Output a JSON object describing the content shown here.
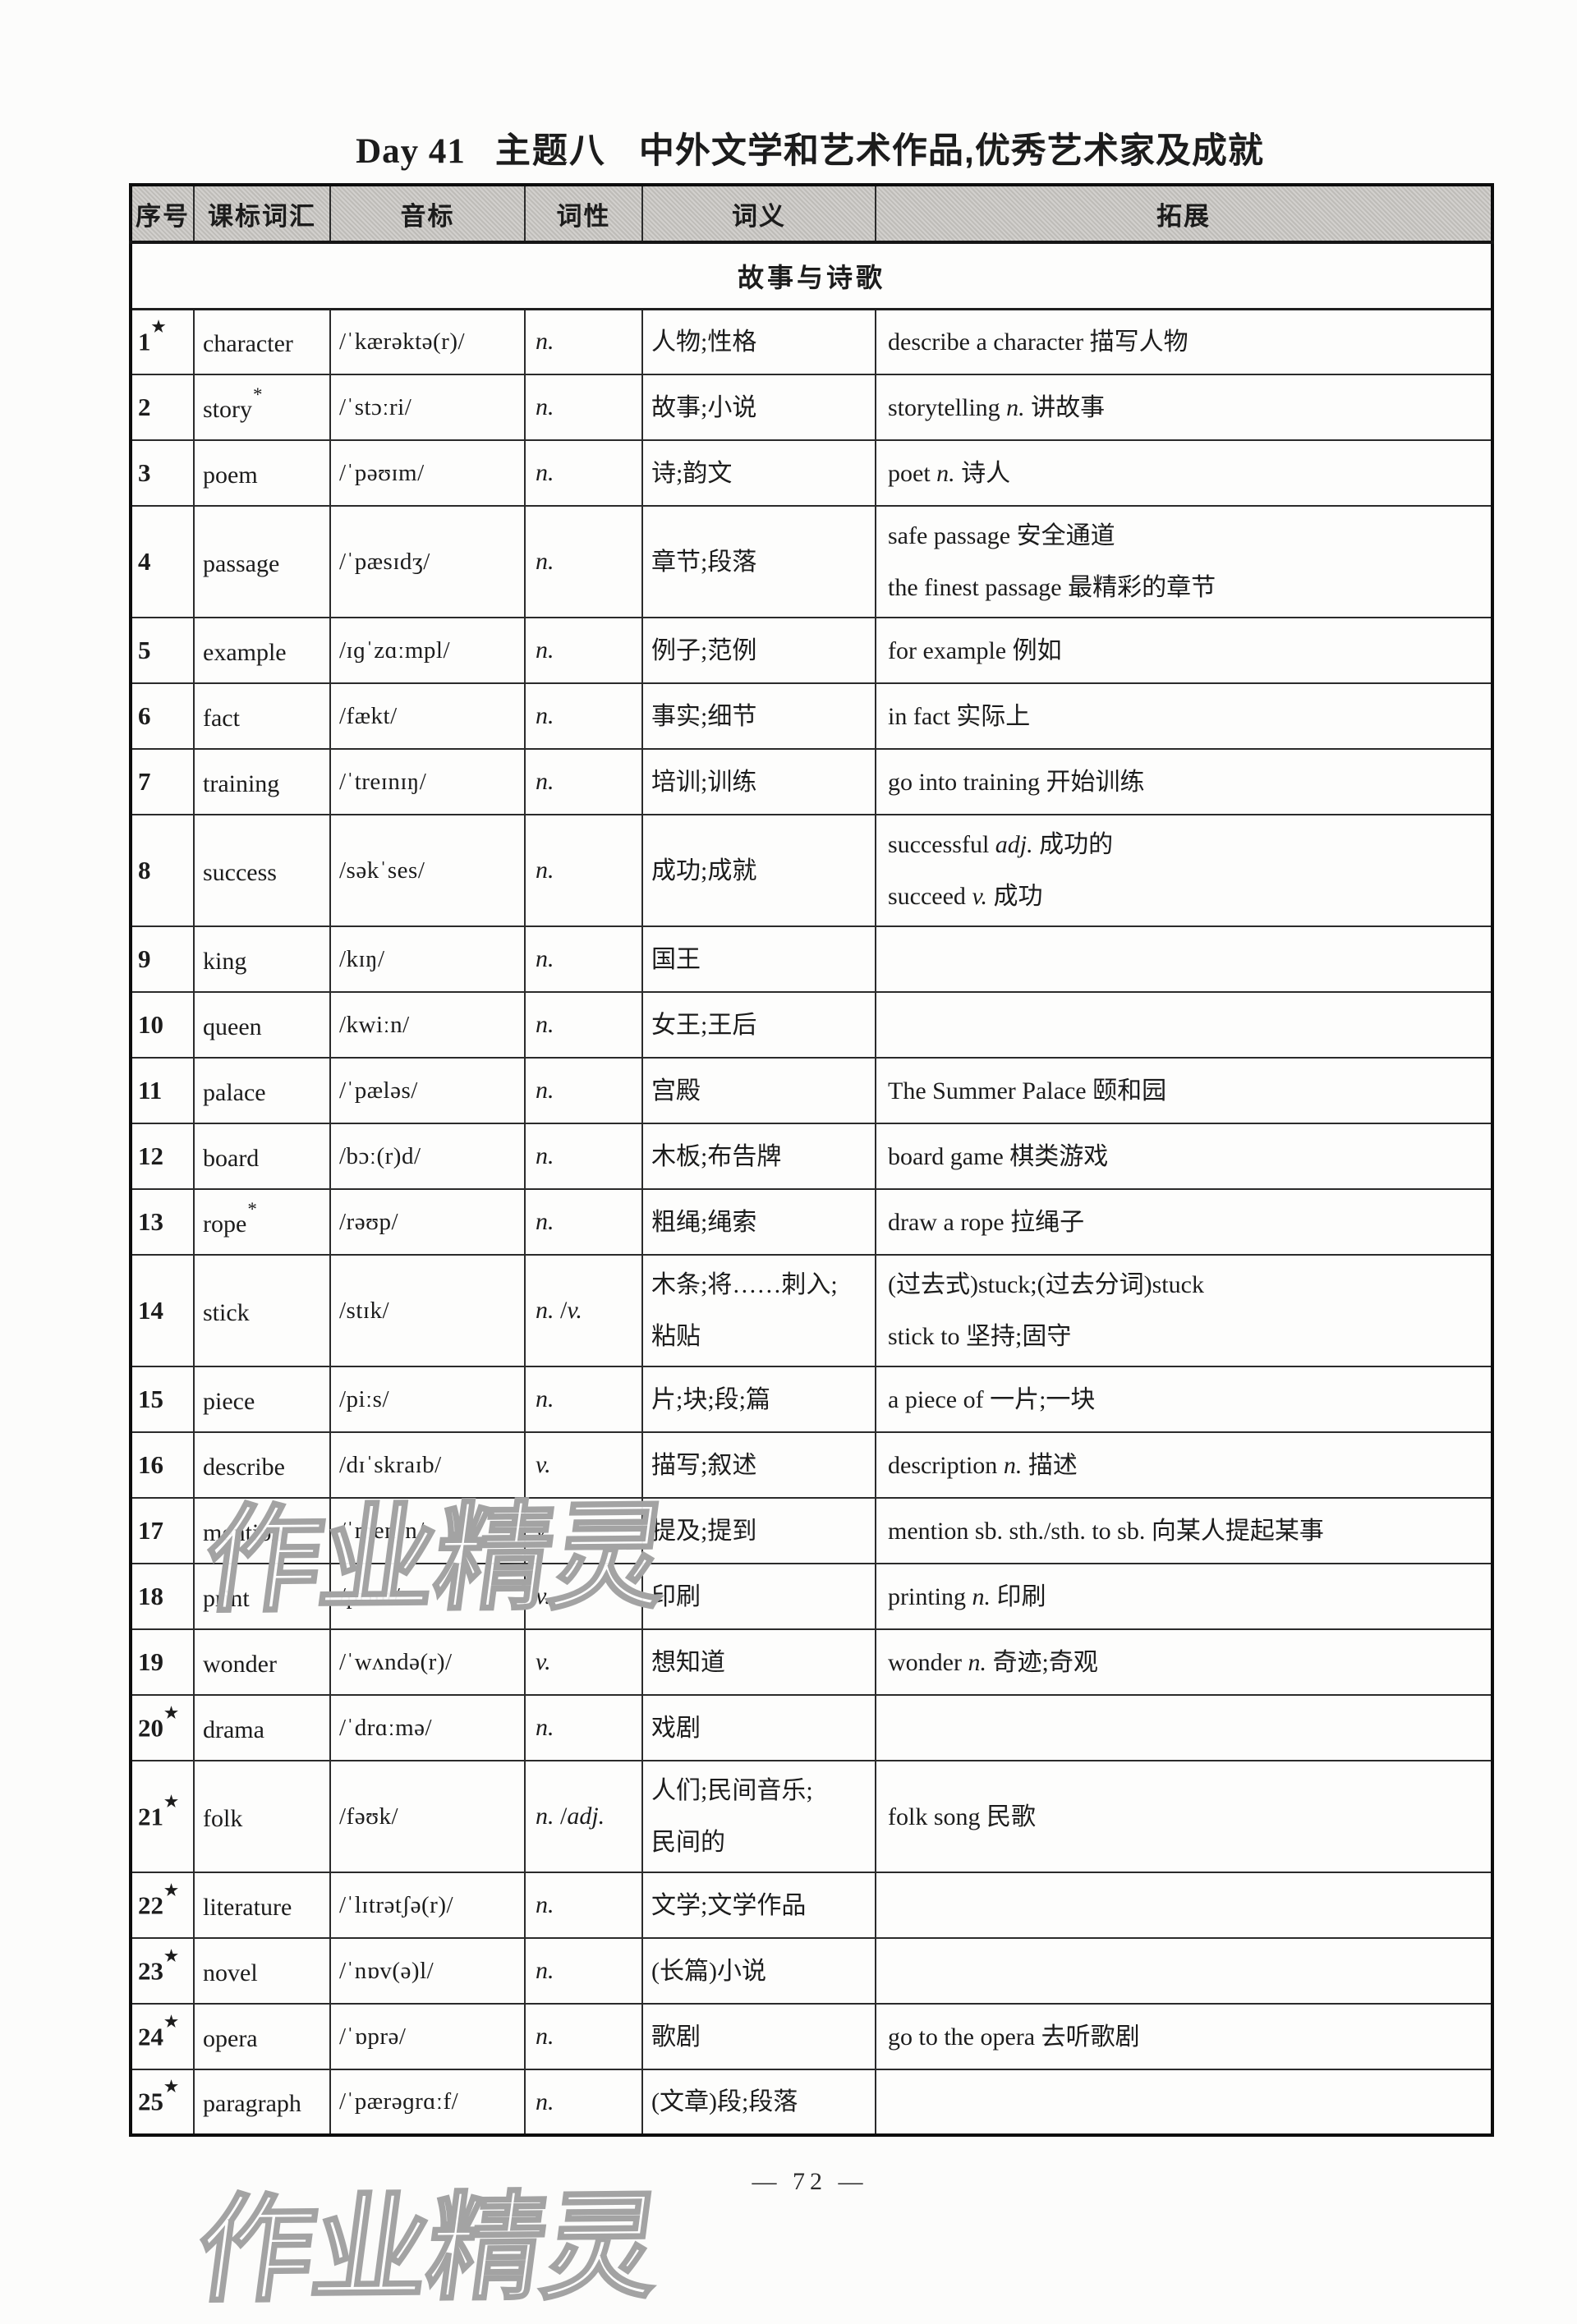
{
  "page": {
    "title_day": "Day 41",
    "title_topic": "主题八",
    "title_rest": "中外文学和艺术作品,优秀艺术家及成就",
    "footer": "— 72 —",
    "watermark": "作业精灵"
  },
  "table": {
    "headers": [
      "序号",
      "课标词汇",
      "音标",
      "词性",
      "词义",
      "拓展"
    ],
    "section": "故事与诗歌",
    "rows": [
      {
        "num": "1",
        "num_star": true,
        "word": "character",
        "word_star": false,
        "phonetic": "/ˈkærəktə(r)/",
        "pos": "n.",
        "meaning": [
          "人物;性格"
        ],
        "extension": [
          "describe a character 描写人物"
        ]
      },
      {
        "num": "2",
        "num_star": false,
        "word": "story",
        "word_star": true,
        "phonetic": "/ˈstɔːri/",
        "pos": "n.",
        "meaning": [
          "故事;小说"
        ],
        "extension": [
          "storytelling n. 讲故事"
        ]
      },
      {
        "num": "3",
        "num_star": false,
        "word": "poem",
        "word_star": false,
        "phonetic": "/ˈpəʊɪm/",
        "pos": "n.",
        "meaning": [
          "诗;韵文"
        ],
        "extension": [
          "poet n. 诗人"
        ]
      },
      {
        "num": "4",
        "num_star": false,
        "word": "passage",
        "word_star": false,
        "phonetic": "/ˈpæsɪdʒ/",
        "pos": "n.",
        "meaning": [
          "章节;段落"
        ],
        "extension": [
          "safe passage 安全通道",
          "the finest passage 最精彩的章节"
        ]
      },
      {
        "num": "5",
        "num_star": false,
        "word": "example",
        "word_star": false,
        "phonetic": "/ɪɡˈzɑːmpl/",
        "pos": "n.",
        "meaning": [
          "例子;范例"
        ],
        "extension": [
          "for example 例如"
        ]
      },
      {
        "num": "6",
        "num_star": false,
        "word": "fact",
        "word_star": false,
        "phonetic": "/fækt/",
        "pos": "n.",
        "meaning": [
          "事实;细节"
        ],
        "extension": [
          "in fact 实际上"
        ]
      },
      {
        "num": "7",
        "num_star": false,
        "word": "training",
        "word_star": false,
        "phonetic": "/ˈtreɪnɪŋ/",
        "pos": "n.",
        "meaning": [
          "培训;训练"
        ],
        "extension": [
          "go into training 开始训练"
        ]
      },
      {
        "num": "8",
        "num_star": false,
        "word": "success",
        "word_star": false,
        "phonetic": "/səkˈses/",
        "pos": "n.",
        "meaning": [
          "成功;成就"
        ],
        "extension": [
          "successful adj. 成功的",
          "succeed v. 成功"
        ]
      },
      {
        "num": "9",
        "num_star": false,
        "word": "king",
        "word_star": false,
        "phonetic": "/kɪŋ/",
        "pos": "n.",
        "meaning": [
          "国王"
        ],
        "extension": []
      },
      {
        "num": "10",
        "num_star": false,
        "word": "queen",
        "word_star": false,
        "phonetic": "/kwiːn/",
        "pos": "n.",
        "meaning": [
          "女王;王后"
        ],
        "extension": []
      },
      {
        "num": "11",
        "num_star": false,
        "word": "palace",
        "word_star": false,
        "phonetic": "/ˈpæləs/",
        "pos": "n.",
        "meaning": [
          "宫殿"
        ],
        "extension": [
          "The Summer Palace 颐和园"
        ]
      },
      {
        "num": "12",
        "num_star": false,
        "word": "board",
        "word_star": false,
        "phonetic": "/bɔː(r)d/",
        "pos": "n.",
        "meaning": [
          "木板;布告牌"
        ],
        "extension": [
          "board game 棋类游戏"
        ]
      },
      {
        "num": "13",
        "num_star": false,
        "word": "rope",
        "word_star": true,
        "phonetic": "/rəʊp/",
        "pos": "n.",
        "meaning": [
          "粗绳;绳索"
        ],
        "extension": [
          "draw a rope 拉绳子"
        ]
      },
      {
        "num": "14",
        "num_star": false,
        "word": "stick",
        "word_star": false,
        "phonetic": "/stɪk/",
        "pos": "n. /v.",
        "meaning": [
          "木条;将……刺入;",
          "粘贴"
        ],
        "extension": [
          "(过去式)stuck;(过去分词)stuck",
          "stick to 坚持;固守"
        ]
      },
      {
        "num": "15",
        "num_star": false,
        "word": "piece",
        "word_star": false,
        "phonetic": "/piːs/",
        "pos": "n.",
        "meaning": [
          "片;块;段;篇"
        ],
        "extension": [
          "a piece of 一片;一块"
        ]
      },
      {
        "num": "16",
        "num_star": false,
        "word": "describe",
        "word_star": false,
        "phonetic": "/dɪˈskraɪb/",
        "pos": "v.",
        "meaning": [
          "描写;叙述"
        ],
        "extension": [
          "description n. 描述"
        ]
      },
      {
        "num": "17",
        "num_star": false,
        "word": "mention",
        "word_star": false,
        "phonetic": "/ˈmenʃn/",
        "pos": "v.",
        "meaning": [
          "提及;提到"
        ],
        "extension": [
          "mention sb. sth./sth. to sb. 向某人提起某事"
        ]
      },
      {
        "num": "18",
        "num_star": false,
        "word": "print",
        "word_star": false,
        "phonetic": "/prɪnt/",
        "pos": "v.",
        "meaning": [
          "印刷"
        ],
        "extension": [
          "printing n. 印刷"
        ]
      },
      {
        "num": "19",
        "num_star": false,
        "word": "wonder",
        "word_star": false,
        "phonetic": "/ˈwʌndə(r)/",
        "pos": "v.",
        "meaning": [
          "想知道"
        ],
        "extension": [
          "wonder n. 奇迹;奇观"
        ]
      },
      {
        "num": "20",
        "num_star": true,
        "word": "drama",
        "word_star": false,
        "phonetic": "/ˈdrɑːmə/",
        "pos": "n.",
        "meaning": [
          "戏剧"
        ],
        "extension": []
      },
      {
        "num": "21",
        "num_star": true,
        "word": "folk",
        "word_star": false,
        "phonetic": "/fəʊk/",
        "pos": "n. /adj.",
        "meaning": [
          "人们;民间音乐;",
          "民间的"
        ],
        "extension": [
          "folk song 民歌"
        ]
      },
      {
        "num": "22",
        "num_star": true,
        "word": "literature",
        "word_star": false,
        "phonetic": "/ˈlɪtrətʃə(r)/",
        "pos": "n.",
        "meaning": [
          "文学;文学作品"
        ],
        "extension": []
      },
      {
        "num": "23",
        "num_star": true,
        "word": "novel",
        "word_star": false,
        "phonetic": "/ˈnɒv(ə)l/",
        "pos": "n.",
        "meaning": [
          "(长篇)小说"
        ],
        "extension": []
      },
      {
        "num": "24",
        "num_star": true,
        "word": "opera",
        "word_star": false,
        "phonetic": "/ˈɒprə/",
        "pos": "n.",
        "meaning": [
          "歌剧"
        ],
        "extension": [
          "go to the opera 去听歌剧"
        ]
      },
      {
        "num": "25",
        "num_star": true,
        "word": "paragraph",
        "word_star": false,
        "phonetic": "/ˈpærəɡrɑːf/",
        "pos": "n.",
        "meaning": [
          "(文章)段;段落"
        ],
        "extension": []
      }
    ]
  }
}
